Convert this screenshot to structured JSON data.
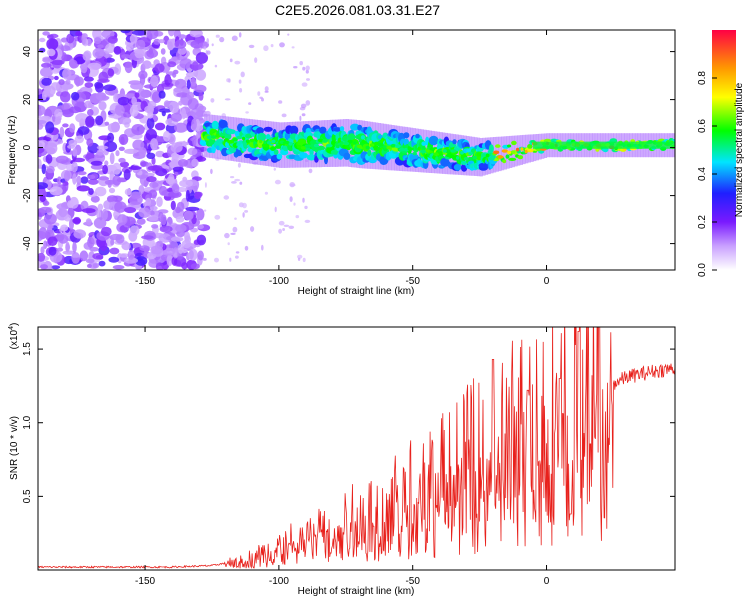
{
  "title": "C2E5.2026.081.03.31.E27",
  "chart_data": [
    {
      "type": "heatmap",
      "name": "spectrogram",
      "xlabel": "Height of straight line (km)",
      "ylabel": "Frequency (Hz)",
      "xlim": [
        -190,
        48
      ],
      "ylim": [
        -51,
        49
      ],
      "xticks": [
        "-150",
        "-100",
        "-50",
        "0"
      ],
      "yticks": [
        "-40",
        "-20",
        "0",
        "20",
        "40"
      ],
      "colorbar": {
        "label": "Normalized spectral amplitude",
        "ticks": [
          "0.0",
          "0.2",
          "0.4",
          "0.6",
          "0.8"
        ],
        "range": [
          0,
          1
        ]
      },
      "regions": [
        {
          "desc": "broadband noise",
          "x_from": -190,
          "x_to": -128,
          "f_min": -50,
          "f_max": 49,
          "amp_max": 0.3
        },
        {
          "desc": "signal band",
          "x_from": -128,
          "x_to": 48,
          "center_hz": [
            [
              -128,
              5
            ],
            [
              -100,
              1
            ],
            [
              -75,
              2
            ],
            [
              -50,
              -1
            ],
            [
              -25,
              -4
            ],
            [
              0,
              1
            ],
            [
              48,
              1
            ]
          ],
          "width_hz": [
            [
              -128,
              6
            ],
            [
              -70,
              7
            ],
            [
              -25,
              5
            ],
            [
              0,
              2
            ],
            [
              48,
              2
            ]
          ],
          "amp_peak": 0.95
        }
      ]
    },
    {
      "type": "line",
      "name": "snr",
      "xlabel": "Height of straight line (km)",
      "ylabel": "SNR (10 * v/v)",
      "y_multiplier": "(x10",
      "y_multiplier_exp": "4",
      "xlim": [
        -190,
        48
      ],
      "ylim": [
        0,
        1.65
      ],
      "xticks": [
        "-150",
        "-100",
        "-50",
        "0"
      ],
      "yticks": [
        "0.5",
        "1.0",
        "1.5"
      ],
      "color": "#e8211c",
      "envelope": [
        {
          "x": -190,
          "y": 0.02
        },
        {
          "x": -140,
          "y": 0.02
        },
        {
          "x": -125,
          "y": 0.03
        },
        {
          "x": -110,
          "y": 0.08
        },
        {
          "x": -100,
          "y": 0.15
        },
        {
          "x": -90,
          "y": 0.22
        },
        {
          "x": -80,
          "y": 0.28
        },
        {
          "x": -70,
          "y": 0.33
        },
        {
          "x": -60,
          "y": 0.4
        },
        {
          "x": -50,
          "y": 0.5
        },
        {
          "x": -40,
          "y": 0.58
        },
        {
          "x": -30,
          "y": 0.68
        },
        {
          "x": -20,
          "y": 0.78
        },
        {
          "x": -10,
          "y": 0.9
        },
        {
          "x": 0,
          "y": 1.0
        },
        {
          "x": 10,
          "y": 1.1
        },
        {
          "x": 20,
          "y": 1.22
        },
        {
          "x": 30,
          "y": 1.31
        },
        {
          "x": 40,
          "y": 1.35
        },
        {
          "x": 48,
          "y": 1.37
        }
      ],
      "spikes": [
        {
          "x": -20,
          "y": 1.43
        },
        {
          "x": -7,
          "y": 1.22
        },
        {
          "x": 5,
          "y": 1.3
        },
        {
          "x": 12,
          "y": 1.62
        },
        {
          "x": 9,
          "y": 0.38
        }
      ]
    }
  ]
}
